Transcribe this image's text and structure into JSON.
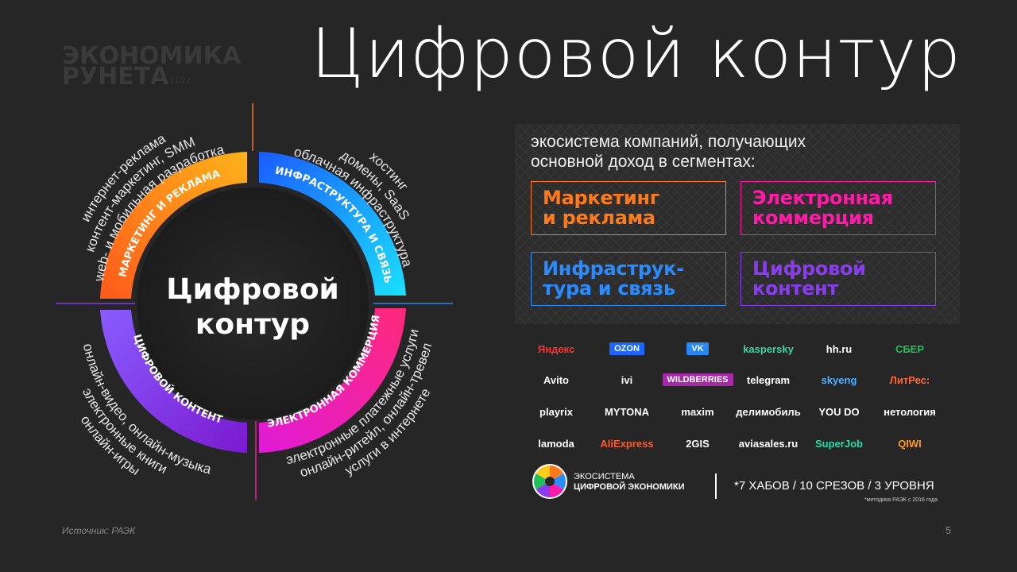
{
  "watermark": {
    "line1": "ЭКОНОМИКА",
    "line2": "РУНЕТА",
    "years": "21/22"
  },
  "title": "Цифровой контур",
  "diagram": {
    "center_line1": "Цифровой",
    "center_line2": "контур",
    "segments": [
      {
        "id": "marketing",
        "label": "МАРКЕТИНГ И РЕКЛАМА",
        "items": [
          "интернет-реклама",
          "контент-маркетинг, SMM",
          "web- и мобильная разработка"
        ]
      },
      {
        "id": "infra",
        "label": "ИНФРАСТРУКТУРА И СВЯЗЬ",
        "items": [
          "хостинг",
          "домены, SaaS",
          "облачная инфраструктура"
        ]
      },
      {
        "id": "ecom",
        "label": "ЭЛЕКТРОННАЯ КОММЕРЦИЯ",
        "items": [
          "электронные платежные услуги",
          "онлайн-ритейл, онлайн-тревел",
          "услуги в интернете"
        ]
      },
      {
        "id": "content",
        "label": "ЦИФРОВОЙ КОНТЕНТ",
        "items": [
          "онлайн-видео, онлайн-музыка",
          "электронные книги",
          "онлайн-игры"
        ]
      }
    ]
  },
  "panel": {
    "heading_line1": "экосистема компаний, получающих",
    "heading_line2": "основной доход в сегментах:",
    "boxes": [
      {
        "line1": "Маркетинг",
        "line2": "и реклама",
        "color": "#ff7a1a"
      },
      {
        "line1": "Электронная",
        "line2": "коммерция",
        "color": "#ff1aa8"
      },
      {
        "line1": "Инфраструк-",
        "line2": "тура и связь",
        "color": "#2a8cff"
      },
      {
        "line1": "Цифровой",
        "line2": "контент",
        "color": "#8a3cf0"
      }
    ]
  },
  "logos": [
    {
      "text": "Яндекс",
      "color": "#ff3333"
    },
    {
      "text": "OZON",
      "color": "#ffffff",
      "bg": "#1a66ff"
    },
    {
      "text": "VK",
      "color": "#ffffff",
      "bg": "#2787f5"
    },
    {
      "text": "kaspersky",
      "color": "#3fd3a0"
    },
    {
      "text": "hh.ru",
      "color": "#ffffff"
    },
    {
      "text": "СБЕР",
      "color": "#21c05a"
    },
    {
      "text": "Avito",
      "color": "#ffffff"
    },
    {
      "text": "ivi",
      "color": "#ffffff"
    },
    {
      "text": "WILDBERRIES",
      "color": "#ffffff",
      "bg": "#a62aa8"
    },
    {
      "text": "telegram",
      "color": "#ffffff"
    },
    {
      "text": "skyeng",
      "color": "#4fb3ff"
    },
    {
      "text": "ЛитРес:",
      "color": "#ff6a3d"
    },
    {
      "text": "playrix",
      "color": "#ffffff"
    },
    {
      "text": "MYTONA",
      "color": "#ffffff"
    },
    {
      "text": "maxim",
      "color": "#ffffff"
    },
    {
      "text": "делимобиль",
      "color": "#ffffff"
    },
    {
      "text": "YOU DO",
      "color": "#ffffff"
    },
    {
      "text": "нетология",
      "color": "#ffffff"
    },
    {
      "text": "lamoda",
      "color": "#ffffff"
    },
    {
      "text": "AliExpress",
      "color": "#ff5a2a"
    },
    {
      "text": "2GIS",
      "color": "#ffffff"
    },
    {
      "text": "aviasales.ru",
      "color": "#ffffff"
    },
    {
      "text": "SuperJob",
      "color": "#2fd8a8"
    },
    {
      "text": "QIWI",
      "color": "#ff9a1a"
    }
  ],
  "eco": {
    "line1": "ЭКОСИСТЕМА",
    "line2": "ЦИФРОВОЙ ЭКОНОМИКИ"
  },
  "hubs": {
    "text": "*7 ХАБОВ / 10 СРЕЗОВ / 3 УРОВНЯ",
    "note": "*методика РАЭК с 2016 года"
  },
  "footer": {
    "source": "Источник: РАЭК",
    "page": "5"
  }
}
